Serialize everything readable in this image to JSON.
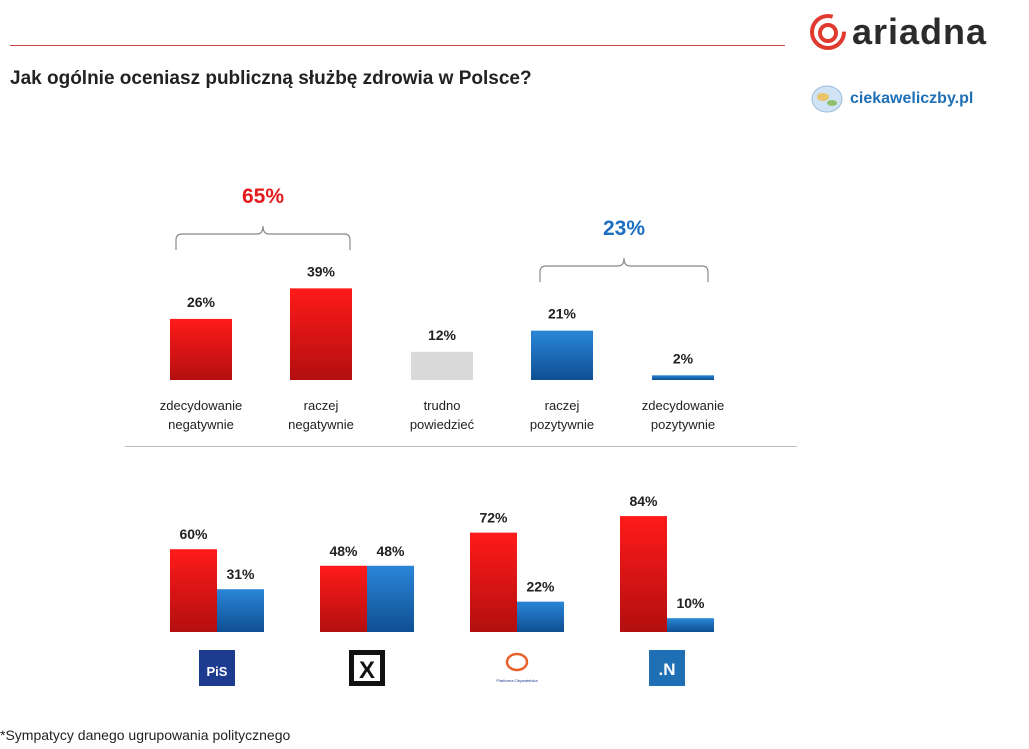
{
  "header": {
    "title": "Jak ogólnie oceniasz publiczną służbę zdrowia w Polsce?",
    "brand": "ariadna",
    "site": "ciekaweliczby.pl"
  },
  "colors": {
    "negative": "#e41b1b",
    "neutral": "#d9d9d9",
    "positive": "#1c6fc0",
    "brand": "#e03a2e"
  },
  "chart_data": [
    {
      "type": "bar",
      "categories": [
        "zdecydowanie negatywnie",
        "raczej negatywnie",
        "trudno powiedzieć",
        "raczej pozytywnie",
        "zdecydowanie pozytywnie"
      ],
      "category_lines": [
        [
          "zdecydowanie",
          "negatywnie"
        ],
        [
          "raczej",
          "negatywnie"
        ],
        [
          "trudno",
          "powiedzieć"
        ],
        [
          "raczej",
          "pozytywnie"
        ],
        [
          "zdecydowanie",
          "pozytywnie"
        ]
      ],
      "values": [
        26,
        39,
        12,
        21,
        2
      ],
      "value_labels": [
        "26%",
        "39%",
        "12%",
        "21%",
        "2%"
      ],
      "bar_colors": [
        "negative",
        "negative",
        "neutral",
        "positive",
        "positive"
      ],
      "unit": "%",
      "ylim": [
        0,
        100
      ],
      "annotations": [
        {
          "text": "65%",
          "color": "negative",
          "covers": [
            0,
            1
          ]
        },
        {
          "text": "23%",
          "color": "positive",
          "covers": [
            3,
            4
          ]
        }
      ]
    },
    {
      "type": "bar",
      "grouped": true,
      "categories": [
        "PiS",
        "Kukiz'15",
        "Platforma Obywatelska",
        ".N"
      ],
      "series": [
        {
          "values": [
            60,
            48,
            72,
            84
          ],
          "value_labels": [
            "60%",
            "48%",
            "72%",
            "84%"
          ],
          "color": "negative"
        },
        {
          "values": [
            31,
            48,
            22,
            10
          ],
          "value_labels": [
            "31%",
            "48%",
            "22%",
            "10%"
          ],
          "color": "positive"
        }
      ],
      "unit": "%",
      "ylim": [
        0,
        100
      ],
      "party_icons": [
        {
          "name": "pis-logo-icon",
          "text": "PiS"
        },
        {
          "name": "kukiz-logo-icon",
          "text": "X"
        },
        {
          "name": "po-logo-icon",
          "text": "Platforma Obywatelska"
        },
        {
          "name": "nowoczesna-logo-icon",
          "text": ".N"
        }
      ]
    }
  ],
  "footnote": "*Sympatycy danego ugrupowania politycznego"
}
